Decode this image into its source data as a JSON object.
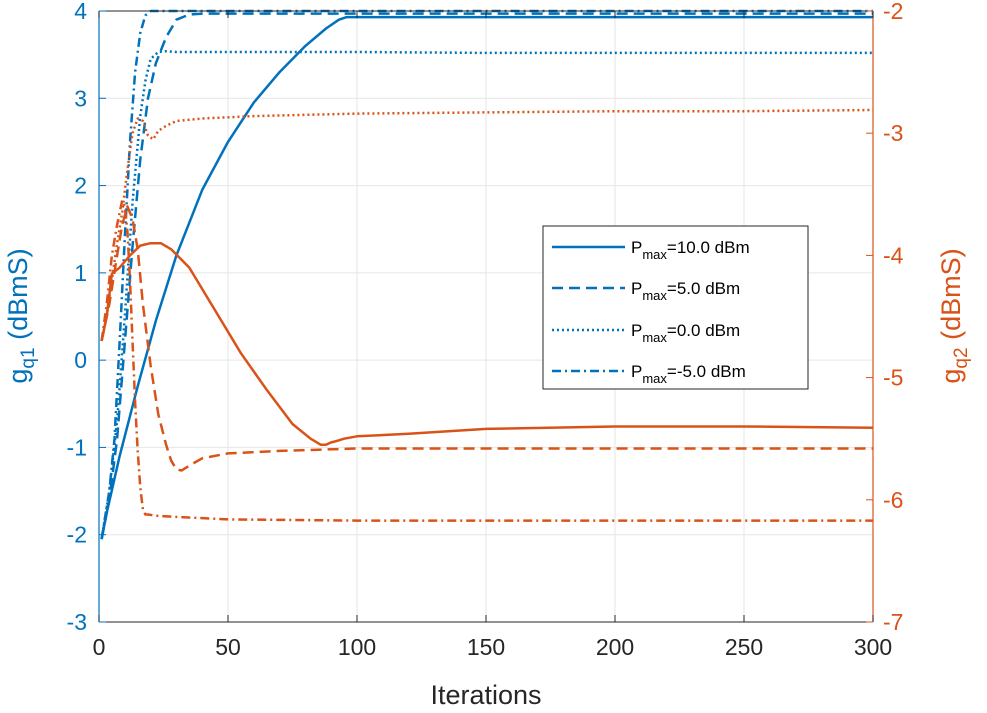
{
  "chart_data": {
    "type": "line",
    "xlabel": "Iterations",
    "xlim": [
      0,
      300
    ],
    "xticks": [
      "0",
      "50",
      "100",
      "150",
      "200",
      "250",
      "300"
    ],
    "left_axis": {
      "label_main": "g",
      "label_sub": "q1",
      "label_unit": " (dBmS)",
      "ylim": [
        -3,
        4
      ],
      "ticks": [
        "-3",
        "-2",
        "-1",
        "0",
        "1",
        "2",
        "3",
        "4"
      ],
      "color": "#0072bd"
    },
    "right_axis": {
      "label_main": "g",
      "label_sub": "q2",
      "label_unit": " (dBmS)",
      "ylim": [
        -7,
        -2
      ],
      "ticks": [
        "-7",
        "-6",
        "-5",
        "-4",
        "-3",
        "-2"
      ],
      "color": "#d95319"
    },
    "grid": true,
    "legend_position": "center-right",
    "legend": [
      {
        "prefix": "P",
        "sub": "max",
        "text": "=10.0 dBm",
        "style": "solid"
      },
      {
        "prefix": "P",
        "sub": "max",
        "text": "=5.0 dBm",
        "style": "dashed"
      },
      {
        "prefix": "P",
        "sub": "max",
        "text": "=0.0 dBm",
        "style": "dotted"
      },
      {
        "prefix": "P",
        "sub": "max",
        "text": "=-5.0 dBm",
        "style": "dashdot"
      }
    ],
    "series": [
      {
        "name": "Pmax=10.0 dBm",
        "axis": "left",
        "style": "solid",
        "x": [
          1,
          3,
          8,
          15,
          22,
          30,
          40,
          50,
          60,
          70,
          80,
          88,
          93,
          96,
          100,
          150,
          200,
          250,
          300
        ],
        "y": [
          -2.05,
          -1.75,
          -1.1,
          -0.3,
          0.45,
          1.2,
          1.95,
          2.5,
          2.95,
          3.3,
          3.6,
          3.8,
          3.9,
          3.93,
          3.93,
          3.93,
          3.93,
          3.93,
          3.93
        ]
      },
      {
        "name": "Pmax=5.0 dBm",
        "axis": "left",
        "style": "dashed",
        "x": [
          1,
          4,
          7,
          10,
          13,
          16,
          19,
          22,
          26,
          30,
          35,
          40,
          45,
          50,
          100,
          150,
          200,
          250,
          300
        ],
        "y": [
          -2.05,
          -1.6,
          -0.9,
          0.2,
          1.3,
          2.3,
          3.0,
          3.4,
          3.7,
          3.9,
          3.96,
          3.97,
          3.97,
          3.97,
          3.97,
          3.97,
          3.97,
          3.97,
          3.97
        ]
      },
      {
        "name": "Pmax=0.0 dBm",
        "axis": "left",
        "style": "dotted",
        "x": [
          1,
          4,
          7,
          10,
          13,
          16,
          18,
          20,
          23,
          26,
          30,
          50,
          100,
          150,
          200,
          250,
          300
        ],
        "y": [
          -2.05,
          -1.5,
          -0.7,
          0.5,
          1.8,
          2.8,
          3.2,
          3.45,
          3.53,
          3.54,
          3.53,
          3.53,
          3.53,
          3.52,
          3.52,
          3.52,
          3.52
        ]
      },
      {
        "name": "Pmax=-5.0 dBm",
        "axis": "left",
        "style": "dashdot",
        "x": [
          1,
          4,
          6,
          8,
          10,
          12,
          14,
          16,
          18,
          20,
          22,
          30,
          50,
          100,
          150,
          200,
          250,
          300
        ],
        "y": [
          -2.05,
          -1.5,
          -0.9,
          0.2,
          1.4,
          2.5,
          3.3,
          3.75,
          3.95,
          4.0,
          4.0,
          4.0,
          4.0,
          4.0,
          4.0,
          4.0,
          4.0,
          4.0
        ]
      },
      {
        "name": "Pmax=10.0 dBm",
        "axis": "right",
        "style": "solid",
        "x": [
          1,
          3,
          5,
          8,
          12,
          16,
          20,
          24,
          28,
          35,
          45,
          55,
          65,
          75,
          82,
          86,
          88,
          90,
          92,
          95,
          100,
          120,
          150,
          200,
          250,
          300
        ],
        "y": [
          -4.7,
          -4.5,
          -4.15,
          -4.1,
          -4.0,
          -3.92,
          -3.9,
          -3.9,
          -3.95,
          -4.1,
          -4.45,
          -4.8,
          -5.1,
          -5.38,
          -5.5,
          -5.55,
          -5.55,
          -5.53,
          -5.52,
          -5.5,
          -5.48,
          -5.46,
          -5.42,
          -5.4,
          -5.4,
          -5.41
        ]
      },
      {
        "name": "Pmax=5.0 dBm",
        "axis": "right",
        "style": "dashed",
        "x": [
          1,
          4,
          7,
          9,
          11,
          13,
          15,
          17,
          20,
          23,
          26,
          28,
          30,
          32,
          35,
          40,
          50,
          70,
          100,
          150,
          200,
          250,
          300
        ],
        "y": [
          -4.7,
          -4.4,
          -4.0,
          -3.75,
          -3.6,
          -3.7,
          -3.95,
          -4.4,
          -4.9,
          -5.3,
          -5.55,
          -5.68,
          -5.75,
          -5.76,
          -5.72,
          -5.66,
          -5.62,
          -5.6,
          -5.58,
          -5.58,
          -5.58,
          -5.58,
          -5.58
        ]
      },
      {
        "name": "Pmax=0.0 dBm",
        "axis": "right",
        "style": "dotted",
        "x": [
          1,
          3,
          5,
          7,
          9,
          11,
          13,
          15,
          17,
          19,
          21,
          23,
          26,
          30,
          40,
          60,
          100,
          150,
          200,
          250,
          300
        ],
        "y": [
          -4.7,
          -4.5,
          -4.2,
          -3.9,
          -3.65,
          -3.3,
          -3.0,
          -2.88,
          -2.9,
          -3.02,
          -3.05,
          -2.98,
          -2.94,
          -2.9,
          -2.88,
          -2.86,
          -2.84,
          -2.83,
          -2.82,
          -2.82,
          -2.81
        ]
      },
      {
        "name": "Pmax=-5.0 dBm",
        "axis": "right",
        "style": "dashdot",
        "x": [
          1,
          3,
          5,
          7,
          9,
          10,
          11,
          12,
          13,
          14,
          15,
          16,
          17,
          18,
          19,
          22,
          30,
          50,
          100,
          150,
          200,
          250,
          300
        ],
        "y": [
          -4.7,
          -4.4,
          -4.0,
          -3.75,
          -3.55,
          -3.6,
          -3.8,
          -4.2,
          -4.7,
          -5.2,
          -5.6,
          -5.9,
          -6.08,
          -6.12,
          -6.12,
          -6.13,
          -6.14,
          -6.16,
          -6.17,
          -6.17,
          -6.17,
          -6.17,
          -6.17
        ]
      }
    ]
  }
}
